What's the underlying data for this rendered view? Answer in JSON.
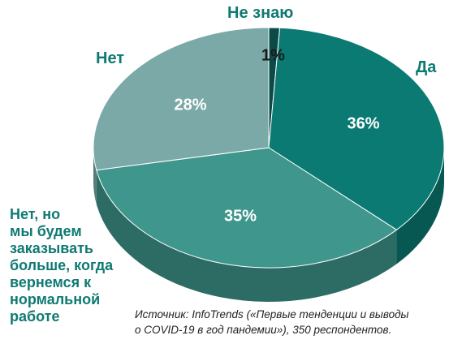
{
  "chart_data": {
    "type": "pie",
    "slices": [
      {
        "label": "Не знаю",
        "value": 1,
        "value_label": "1%",
        "color": "#0b4a46",
        "label_color": "#1a1a1a"
      },
      {
        "label": "Да",
        "value": 36,
        "value_label": "36%",
        "color": "#0a7a72",
        "label_color": "#ffffff"
      },
      {
        "label": "Нет, но\nмы будем\nзаказывать\nбольше, когда\nвернемся к\nнормальной\nработе",
        "value": 35,
        "value_label": "35%",
        "color": "#3e968c",
        "label_color": "#ffffff"
      },
      {
        "label": "Нет",
        "value": 28,
        "value_label": "28%",
        "color": "#7aa9a8",
        "label_color": "#ffffff"
      }
    ],
    "style": "3d-pie",
    "source": "Источник: InfoTrends («Первые тенденции и выводы\nо COVID-19 в год пандемии»), 350 респондентов."
  },
  "colors": {
    "label_text": "#0f7a72",
    "side_dark": "#08504b",
    "side_mid": "#2e6b66"
  }
}
